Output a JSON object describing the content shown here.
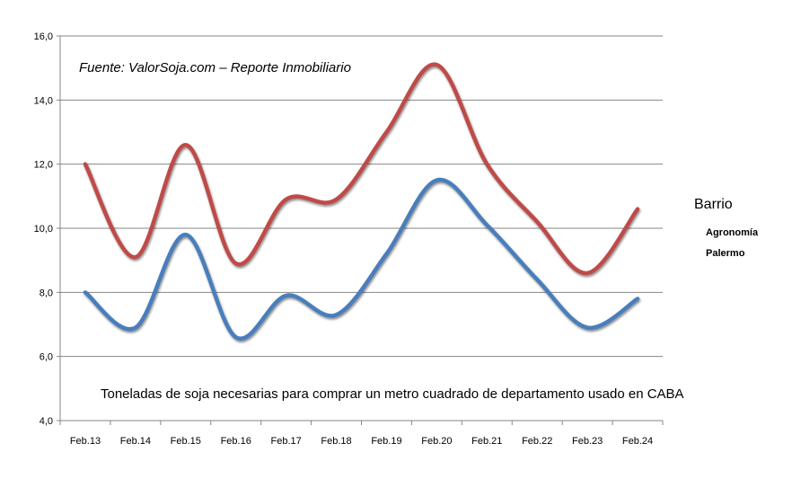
{
  "chart_data": {
    "type": "line",
    "title": "",
    "source_note": "Fuente: ValorSoja.com – Reporte Inmobiliario",
    "annotation": "Toneladas de soja necesarias para comprar un  metro cuadrado de departamento usado en CABA",
    "xlabel": "",
    "ylabel": "",
    "categories": [
      "Feb.13",
      "Feb.14",
      "Feb.15",
      "Feb.16",
      "Feb.17",
      "Feb.18",
      "Feb.19",
      "Feb.20",
      "Feb.21",
      "Feb.22",
      "Feb.23",
      "Feb.24"
    ],
    "ylim": [
      4,
      16
    ],
    "yticks": [
      "4,0",
      "6,0",
      "8,0",
      "10,0",
      "12,0",
      "14,0",
      "16,0"
    ],
    "grid": true,
    "smooth": true,
    "legend": {
      "title": "Barrio",
      "placement": "right"
    },
    "series": [
      {
        "name": "Agronomía",
        "color": "#4a7ebb",
        "values": [
          8.0,
          6.9,
          9.8,
          6.6,
          7.9,
          7.3,
          9.2,
          11.5,
          10.1,
          8.4,
          6.9,
          7.8
        ]
      },
      {
        "name": "Palermo",
        "color": "#be4b48",
        "values": [
          12.0,
          9.1,
          12.6,
          8.9,
          10.9,
          10.9,
          13.0,
          15.1,
          12.0,
          10.2,
          8.6,
          10.6
        ]
      }
    ]
  }
}
